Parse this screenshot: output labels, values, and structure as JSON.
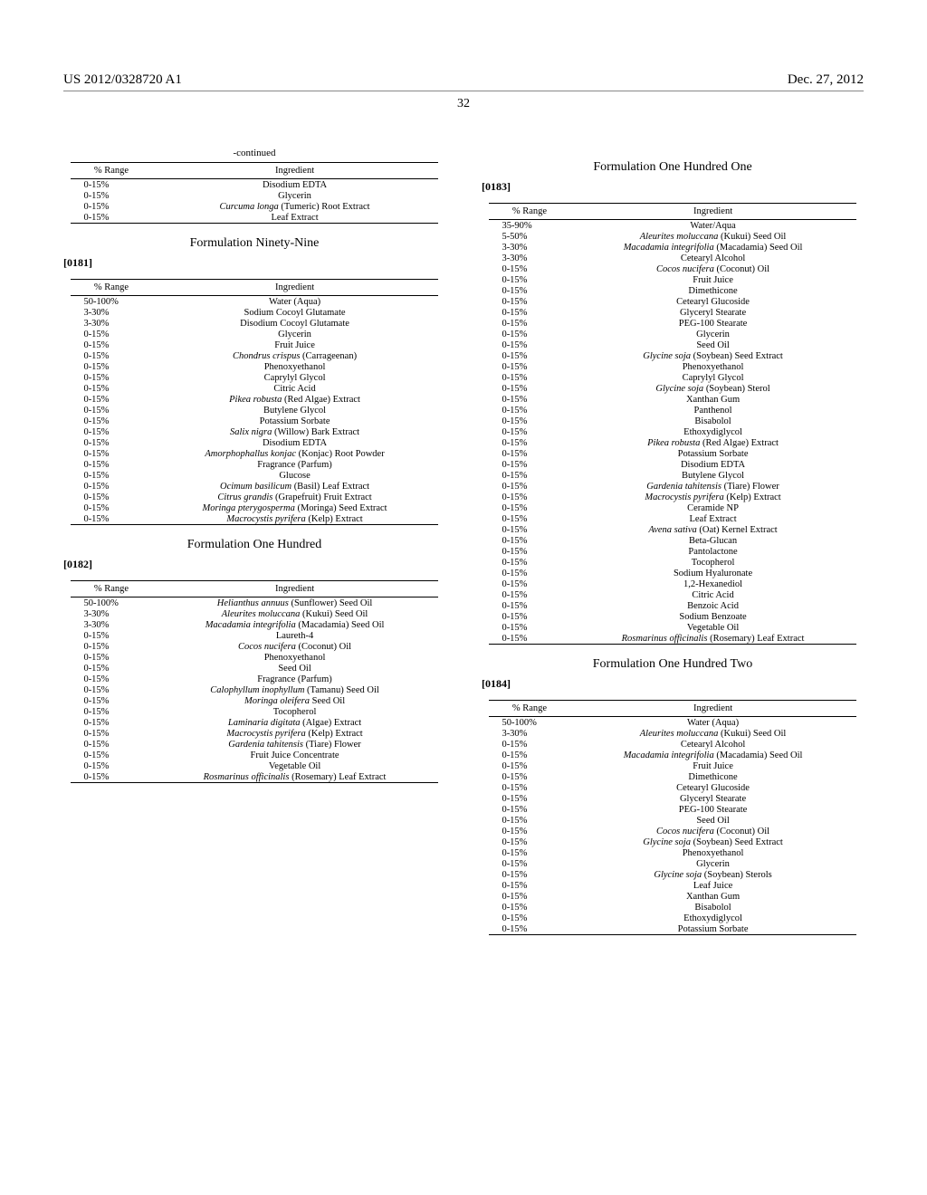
{
  "header": {
    "patent_no": "US 2012/0328720 A1",
    "date": "Dec. 27, 2012",
    "page_number": "32"
  },
  "left_column": [
    {
      "type": "continued_table",
      "continued_label": "-continued",
      "headers": [
        "% Range",
        "Ingredient"
      ],
      "rows": [
        [
          "0-15%",
          [
            {
              "t": "Disodium EDTA"
            }
          ]
        ],
        [
          "0-15%",
          [
            {
              "t": "Glycerin"
            }
          ]
        ],
        [
          "0-15%",
          [
            {
              "t": "Curcuma longa",
              "i": true
            },
            {
              "t": " (Tumeric) Root Extract"
            }
          ]
        ],
        [
          "0-15%",
          [
            {
              "t": "Leaf Extract"
            }
          ]
        ]
      ]
    },
    {
      "type": "formulation",
      "title": "Formulation Ninety-Nine",
      "para_num": "[0181]",
      "headers": [
        "% Range",
        "Ingredient"
      ],
      "rows": [
        [
          "50-100%",
          [
            {
              "t": "Water (Aqua)"
            }
          ]
        ],
        [
          "3-30%",
          [
            {
              "t": "Sodium Cocoyl Glutamate"
            }
          ]
        ],
        [
          "3-30%",
          [
            {
              "t": "Disodium Cocoyl Glutamate"
            }
          ]
        ],
        [
          "0-15%",
          [
            {
              "t": "Glycerin"
            }
          ]
        ],
        [
          "0-15%",
          [
            {
              "t": "Fruit Juice"
            }
          ]
        ],
        [
          "0-15%",
          [
            {
              "t": "Chondrus crispus",
              "i": true
            },
            {
              "t": " (Carrageenan)"
            }
          ]
        ],
        [
          "0-15%",
          [
            {
              "t": "Phenoxyethanol"
            }
          ]
        ],
        [
          "0-15%",
          [
            {
              "t": "Caprylyl Glycol"
            }
          ]
        ],
        [
          "0-15%",
          [
            {
              "t": "Citric Acid"
            }
          ]
        ],
        [
          "0-15%",
          [
            {
              "t": "Pikea robusta",
              "i": true
            },
            {
              "t": " (Red Algae) Extract"
            }
          ]
        ],
        [
          "0-15%",
          [
            {
              "t": "Butylene Glycol"
            }
          ]
        ],
        [
          "0-15%",
          [
            {
              "t": "Potassium Sorbate"
            }
          ]
        ],
        [
          "0-15%",
          [
            {
              "t": "Salix nigra",
              "i": true
            },
            {
              "t": " (Willow) Bark Extract"
            }
          ]
        ],
        [
          "0-15%",
          [
            {
              "t": "Disodium EDTA"
            }
          ]
        ],
        [
          "0-15%",
          [
            {
              "t": "Amorphophallus konjac",
              "i": true
            },
            {
              "t": " (Konjac) Root Powder"
            }
          ]
        ],
        [
          "0-15%",
          [
            {
              "t": "Fragrance (Parfum)"
            }
          ]
        ],
        [
          "0-15%",
          [
            {
              "t": "Glucose"
            }
          ]
        ],
        [
          "0-15%",
          [
            {
              "t": "Ocimum basilicum",
              "i": true
            },
            {
              "t": " (Basil) Leaf Extract"
            }
          ]
        ],
        [
          "0-15%",
          [
            {
              "t": "Citrus grandis",
              "i": true
            },
            {
              "t": " (Grapefruit) Fruit Extract"
            }
          ]
        ],
        [
          "0-15%",
          [
            {
              "t": "Moringa pterygosperma",
              "i": true
            },
            {
              "t": " (Moringa) Seed Extract"
            }
          ]
        ],
        [
          "0-15%",
          [
            {
              "t": "Macrocystis pyrifera",
              "i": true
            },
            {
              "t": " (Kelp) Extract"
            }
          ]
        ]
      ]
    },
    {
      "type": "formulation",
      "title": "Formulation One Hundred",
      "para_num": "[0182]",
      "headers": [
        "% Range",
        "Ingredient"
      ],
      "rows": [
        [
          "50-100%",
          [
            {
              "t": "Helianthus annuus",
              "i": true
            },
            {
              "t": " (Sunflower) Seed Oil"
            }
          ]
        ],
        [
          "3-30%",
          [
            {
              "t": "Aleurites moluccana",
              "i": true
            },
            {
              "t": " (Kukui) Seed Oil"
            }
          ]
        ],
        [
          "3-30%",
          [
            {
              "t": "Macadamia integrifolia",
              "i": true
            },
            {
              "t": " (Macadamia) Seed Oil"
            }
          ]
        ],
        [
          "0-15%",
          [
            {
              "t": "Laureth-4"
            }
          ]
        ],
        [
          "0-15%",
          [
            {
              "t": "Cocos nucifera",
              "i": true
            },
            {
              "t": " (Coconut) Oil"
            }
          ]
        ],
        [
          "0-15%",
          [
            {
              "t": "Phenoxyethanol"
            }
          ]
        ],
        [
          "0-15%",
          [
            {
              "t": "Seed Oil"
            }
          ]
        ],
        [
          "0-15%",
          [
            {
              "t": "Fragrance (Parfum)"
            }
          ]
        ],
        [
          "0-15%",
          [
            {
              "t": "Calophyllum inophyllum",
              "i": true
            },
            {
              "t": " (Tamanu) Seed Oil"
            }
          ]
        ],
        [
          "0-15%",
          [
            {
              "t": "Moringa oleifera",
              "i": true
            },
            {
              "t": " Seed Oil"
            }
          ]
        ],
        [
          "0-15%",
          [
            {
              "t": "Tocopherol"
            }
          ]
        ],
        [
          "0-15%",
          [
            {
              "t": "Laminaria digitata",
              "i": true
            },
            {
              "t": " (Algae) Extract"
            }
          ]
        ],
        [
          "0-15%",
          [
            {
              "t": "Macrocystis pyrifera",
              "i": true
            },
            {
              "t": " (Kelp) Extract"
            }
          ]
        ],
        [
          "0-15%",
          [
            {
              "t": "Gardenia tahitensis",
              "i": true
            },
            {
              "t": " (Tiare) Flower"
            }
          ]
        ],
        [
          "0-15%",
          [
            {
              "t": "Fruit Juice Concentrate"
            }
          ]
        ],
        [
          "0-15%",
          [
            {
              "t": "Vegetable Oil"
            }
          ]
        ],
        [
          "0-15%",
          [
            {
              "t": "Rosmarinus officinalis",
              "i": true
            },
            {
              "t": " (Rosemary) Leaf Extract"
            }
          ]
        ]
      ]
    }
  ],
  "right_column": [
    {
      "type": "formulation",
      "title": "Formulation One Hundred One",
      "para_num": "[0183]",
      "headers": [
        "% Range",
        "Ingredient"
      ],
      "rows": [
        [
          "35-90%",
          [
            {
              "t": "Water/Aqua"
            }
          ]
        ],
        [
          "5-50%",
          [
            {
              "t": "Aleurites moluccana",
              "i": true
            },
            {
              "t": " (Kukui) Seed Oil"
            }
          ]
        ],
        [
          "3-30%",
          [
            {
              "t": "Macadamia integrifolia",
              "i": true
            },
            {
              "t": " (Macadamia) Seed Oil"
            }
          ]
        ],
        [
          "3-30%",
          [
            {
              "t": "Cetearyl Alcohol"
            }
          ]
        ],
        [
          "0-15%",
          [
            {
              "t": "Cocos nucifera",
              "i": true
            },
            {
              "t": " (Coconut) Oil"
            }
          ]
        ],
        [
          "0-15%",
          [
            {
              "t": "Fruit Juice"
            }
          ]
        ],
        [
          "0-15%",
          [
            {
              "t": "Dimethicone"
            }
          ]
        ],
        [
          "0-15%",
          [
            {
              "t": "Cetearyl Glucoside"
            }
          ]
        ],
        [
          "0-15%",
          [
            {
              "t": "Glyceryl Stearate"
            }
          ]
        ],
        [
          "0-15%",
          [
            {
              "t": "PEG-100 Stearate"
            }
          ]
        ],
        [
          "0-15%",
          [
            {
              "t": "Glycerin"
            }
          ]
        ],
        [
          "0-15%",
          [
            {
              "t": "Seed Oil"
            }
          ]
        ],
        [
          "0-15%",
          [
            {
              "t": "Glycine soja",
              "i": true
            },
            {
              "t": " (Soybean) Seed Extract"
            }
          ]
        ],
        [
          "0-15%",
          [
            {
              "t": "Phenoxyethanol"
            }
          ]
        ],
        [
          "0-15%",
          [
            {
              "t": "Caprylyl Glycol"
            }
          ]
        ],
        [
          "0-15%",
          [
            {
              "t": "Glycine soja",
              "i": true
            },
            {
              "t": " (Soybean) Sterol"
            }
          ]
        ],
        [
          "0-15%",
          [
            {
              "t": "Xanthan Gum"
            }
          ]
        ],
        [
          "0-15%",
          [
            {
              "t": "Panthenol"
            }
          ]
        ],
        [
          "0-15%",
          [
            {
              "t": "Bisabolol"
            }
          ]
        ],
        [
          "0-15%",
          [
            {
              "t": "Ethoxydiglycol"
            }
          ]
        ],
        [
          "0-15%",
          [
            {
              "t": "Pikea robusta",
              "i": true
            },
            {
              "t": " (Red Algae) Extract"
            }
          ]
        ],
        [
          "0-15%",
          [
            {
              "t": "Potassium Sorbate"
            }
          ]
        ],
        [
          "0-15%",
          [
            {
              "t": "Disodium EDTA"
            }
          ]
        ],
        [
          "0-15%",
          [
            {
              "t": "Butylene Glycol"
            }
          ]
        ],
        [
          "0-15%",
          [
            {
              "t": "Gardenia tahitensis",
              "i": true
            },
            {
              "t": " (Tiare) Flower"
            }
          ]
        ],
        [
          "0-15%",
          [
            {
              "t": "Macrocystis pyrifera",
              "i": true
            },
            {
              "t": " (Kelp) Extract"
            }
          ]
        ],
        [
          "0-15%",
          [
            {
              "t": "Ceramide NP"
            }
          ]
        ],
        [
          "0-15%",
          [
            {
              "t": "Leaf Extract"
            }
          ]
        ],
        [
          "0-15%",
          [
            {
              "t": "Avena sativa",
              "i": true
            },
            {
              "t": " (Oat) Kernel Extract"
            }
          ]
        ],
        [
          "0-15%",
          [
            {
              "t": "Beta-Glucan"
            }
          ]
        ],
        [
          "0-15%",
          [
            {
              "t": "Pantolactone"
            }
          ]
        ],
        [
          "0-15%",
          [
            {
              "t": "Tocopherol"
            }
          ]
        ],
        [
          "0-15%",
          [
            {
              "t": "Sodium Hyaluronate"
            }
          ]
        ],
        [
          "0-15%",
          [
            {
              "t": "1,2-Hexanediol"
            }
          ]
        ],
        [
          "0-15%",
          [
            {
              "t": "Citric Acid"
            }
          ]
        ],
        [
          "0-15%",
          [
            {
              "t": "Benzoic Acid"
            }
          ]
        ],
        [
          "0-15%",
          [
            {
              "t": "Sodium Benzoate"
            }
          ]
        ],
        [
          "0-15%",
          [
            {
              "t": "Vegetable Oil"
            }
          ]
        ],
        [
          "0-15%",
          [
            {
              "t": "Rosmarinus officinalis",
              "i": true
            },
            {
              "t": " (Rosemary) Leaf Extract"
            }
          ]
        ]
      ]
    },
    {
      "type": "formulation",
      "title": "Formulation One Hundred Two",
      "para_num": "[0184]",
      "headers": [
        "% Range",
        "Ingredient"
      ],
      "rows": [
        [
          "50-100%",
          [
            {
              "t": "Water (Aqua)"
            }
          ]
        ],
        [
          "3-30%",
          [
            {
              "t": "Aleurites moluccana",
              "i": true
            },
            {
              "t": " (Kukui) Seed Oil"
            }
          ]
        ],
        [
          "0-15%",
          [
            {
              "t": "Cetearyl Alcohol"
            }
          ]
        ],
        [
          "0-15%",
          [
            {
              "t": "Macadamia integrifolia",
              "i": true
            },
            {
              "t": " (Macadamia) Seed Oil"
            }
          ]
        ],
        [
          "0-15%",
          [
            {
              "t": "Fruit Juice"
            }
          ]
        ],
        [
          "0-15%",
          [
            {
              "t": "Dimethicone"
            }
          ]
        ],
        [
          "0-15%",
          [
            {
              "t": "Cetearyl Glucoside"
            }
          ]
        ],
        [
          "0-15%",
          [
            {
              "t": "Glyceryl Stearate"
            }
          ]
        ],
        [
          "0-15%",
          [
            {
              "t": "PEG-100 Stearate"
            }
          ]
        ],
        [
          "0-15%",
          [
            {
              "t": "Seed Oil"
            }
          ]
        ],
        [
          "0-15%",
          [
            {
              "t": "Cocos nucifera",
              "i": true
            },
            {
              "t": " (Coconut) Oil"
            }
          ]
        ],
        [
          "0-15%",
          [
            {
              "t": "Glycine soja",
              "i": true
            },
            {
              "t": " (Soybean) Seed Extract"
            }
          ]
        ],
        [
          "0-15%",
          [
            {
              "t": "Phenoxyethanol"
            }
          ]
        ],
        [
          "0-15%",
          [
            {
              "t": "Glycerin"
            }
          ]
        ],
        [
          "0-15%",
          [
            {
              "t": "Glycine soja",
              "i": true
            },
            {
              "t": " (Soybean) Sterols"
            }
          ]
        ],
        [
          "0-15%",
          [
            {
              "t": "Leaf Juice"
            }
          ]
        ],
        [
          "0-15%",
          [
            {
              "t": "Xanthan Gum"
            }
          ]
        ],
        [
          "0-15%",
          [
            {
              "t": "Bisabolol"
            }
          ]
        ],
        [
          "0-15%",
          [
            {
              "t": "Ethoxydiglycol"
            }
          ]
        ],
        [
          "0-15%",
          [
            {
              "t": "Potassium Sorbate"
            }
          ]
        ]
      ]
    }
  ]
}
